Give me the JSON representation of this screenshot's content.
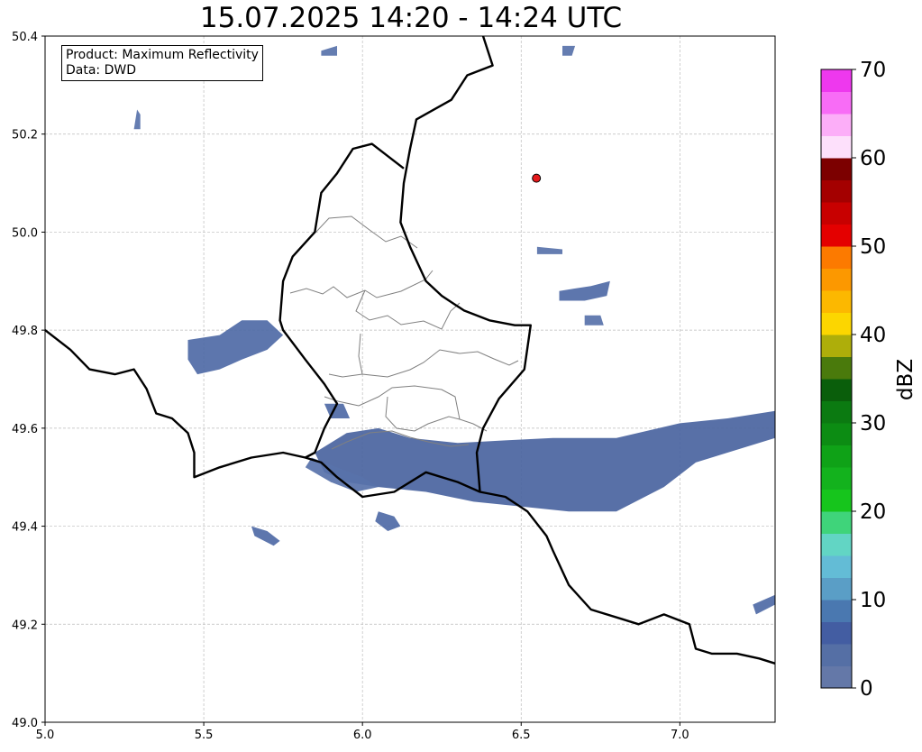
{
  "title": "15.07.2025 14:20 - 14:24 UTC",
  "info": {
    "product_line": "Product: Maximum Reflectivity",
    "data_line": "Data: DWD"
  },
  "map": {
    "lon_range": [
      5.0,
      7.3
    ],
    "lat_range": [
      49.0,
      50.4
    ],
    "x_ticks": [
      "5.0",
      "5.5",
      "6.0",
      "6.5",
      "7.0"
    ],
    "y_ticks": [
      "49.0",
      "49.2",
      "49.4",
      "49.6",
      "49.8",
      "50.0",
      "50.2",
      "50.4"
    ],
    "grid": true,
    "radar_site": {
      "lon": 6.548,
      "lat": 50.11,
      "color": "#e41a1c"
    },
    "country_border": [
      [
        5.0,
        49.8
      ],
      [
        5.08,
        49.76
      ],
      [
        5.14,
        49.72
      ],
      [
        5.22,
        49.71
      ],
      [
        5.28,
        49.72
      ],
      [
        5.32,
        49.68
      ],
      [
        5.35,
        49.63
      ],
      [
        5.4,
        49.62
      ],
      [
        5.45,
        49.59
      ],
      [
        5.47,
        49.55
      ],
      [
        5.47,
        49.5
      ],
      [
        5.55,
        49.52
      ],
      [
        5.65,
        49.54
      ],
      [
        5.75,
        49.55
      ],
      [
        5.82,
        49.54
      ],
      [
        5.87,
        49.53
      ],
      [
        5.92,
        49.5
      ],
      [
        6.0,
        49.46
      ],
      [
        6.1,
        49.47
      ],
      [
        6.2,
        49.51
      ],
      [
        6.3,
        49.49
      ],
      [
        6.37,
        49.47
      ],
      [
        6.45,
        49.46
      ],
      [
        6.52,
        49.43
      ],
      [
        6.58,
        49.38
      ],
      [
        6.6,
        49.35
      ],
      [
        6.65,
        49.28
      ],
      [
        6.72,
        49.23
      ],
      [
        6.82,
        49.21
      ],
      [
        6.87,
        49.2
      ],
      [
        6.95,
        49.22
      ],
      [
        7.03,
        49.2
      ],
      [
        7.05,
        49.15
      ],
      [
        7.1,
        49.14
      ],
      [
        7.18,
        49.14
      ],
      [
        7.25,
        49.13
      ],
      [
        7.3,
        49.12
      ]
    ],
    "west_border": [
      [
        6.38,
        50.4
      ],
      [
        6.41,
        50.34
      ],
      [
        6.33,
        50.32
      ],
      [
        6.28,
        50.27
      ],
      [
        6.17,
        50.23
      ],
      [
        6.15,
        50.17
      ],
      [
        6.13,
        50.1
      ],
      [
        6.12,
        50.02
      ],
      [
        6.15,
        49.97
      ],
      [
        6.2,
        49.9
      ],
      [
        6.25,
        49.87
      ],
      [
        6.32,
        49.84
      ],
      [
        6.4,
        49.82
      ],
      [
        6.48,
        49.81
      ],
      [
        6.53,
        49.81
      ],
      [
        6.51,
        49.72
      ],
      [
        6.43,
        49.66
      ],
      [
        6.38,
        49.6
      ],
      [
        6.36,
        49.55
      ],
      [
        6.37,
        49.47
      ]
    ],
    "lux_border": [
      [
        6.13,
        50.13
      ],
      [
        6.03,
        50.18
      ],
      [
        5.97,
        50.17
      ],
      [
        5.92,
        50.12
      ],
      [
        5.87,
        50.08
      ],
      [
        5.85,
        50.0
      ],
      [
        5.78,
        49.95
      ],
      [
        5.75,
        49.9
      ],
      [
        5.74,
        49.82
      ],
      [
        5.75,
        49.8
      ],
      [
        5.82,
        49.74
      ],
      [
        5.88,
        49.69
      ],
      [
        5.92,
        49.65
      ],
      [
        5.88,
        49.6
      ],
      [
        5.85,
        49.55
      ],
      [
        5.82,
        49.54
      ]
    ]
  },
  "colorbar": {
    "label": "dBZ",
    "ticks": [
      "0",
      "10",
      "20",
      "30",
      "40",
      "50",
      "60",
      "70"
    ],
    "range": [
      0,
      70
    ],
    "levels": [
      {
        "from": 0,
        "to": 2.5,
        "color": "#6478a8"
      },
      {
        "from": 2.5,
        "to": 5,
        "color": "#556fa5"
      },
      {
        "from": 5,
        "to": 7.5,
        "color": "#435da2"
      },
      {
        "from": 7.5,
        "to": 10,
        "color": "#4a78b0"
      },
      {
        "from": 10,
        "to": 12.5,
        "color": "#5a9ec6"
      },
      {
        "from": 12.5,
        "to": 15,
        "color": "#63bcd6"
      },
      {
        "from": 15,
        "to": 17.5,
        "color": "#62d5c4"
      },
      {
        "from": 17.5,
        "to": 20,
        "color": "#3fd47a"
      },
      {
        "from": 20,
        "to": 22.5,
        "color": "#16c51c"
      },
      {
        "from": 22.5,
        "to": 25,
        "color": "#13b21d"
      },
      {
        "from": 25,
        "to": 27.5,
        "color": "#0fa217"
      },
      {
        "from": 27.5,
        "to": 30,
        "color": "#0c8c13"
      },
      {
        "from": 30,
        "to": 32.5,
        "color": "#0b7a11"
      },
      {
        "from": 32.5,
        "to": 35,
        "color": "#0a5e0b"
      },
      {
        "from": 35,
        "to": 37.5,
        "color": "#4a7a0c"
      },
      {
        "from": 37.5,
        "to": 40,
        "color": "#aeae0a"
      },
      {
        "from": 40,
        "to": 42.5,
        "color": "#fcd600"
      },
      {
        "from": 42.5,
        "to": 45,
        "color": "#fcb800"
      },
      {
        "from": 45,
        "to": 47.5,
        "color": "#fc9800"
      },
      {
        "from": 47.5,
        "to": 50,
        "color": "#fc7a00"
      },
      {
        "from": 50,
        "to": 52.5,
        "color": "#e40000"
      },
      {
        "from": 52.5,
        "to": 55,
        "color": "#c80000"
      },
      {
        "from": 55,
        "to": 57.5,
        "color": "#a40000"
      },
      {
        "from": 57.5,
        "to": 60,
        "color": "#7c0000"
      },
      {
        "from": 60,
        "to": 62.5,
        "color": "#fde0fb"
      },
      {
        "from": 62.5,
        "to": 65,
        "color": "#fcaef8"
      },
      {
        "from": 65,
        "to": 67.5,
        "color": "#f86cf6"
      },
      {
        "from": 67.5,
        "to": 70,
        "color": "#ee38ee"
      }
    ]
  },
  "echo_areas": [
    {
      "id": "band-main",
      "color": "#4a64a0",
      "points": [
        [
          5.85,
          49.55
        ],
        [
          5.95,
          49.59
        ],
        [
          6.05,
          49.6
        ],
        [
          6.15,
          49.58
        ],
        [
          6.3,
          49.57
        ],
        [
          6.45,
          49.575
        ],
        [
          6.6,
          49.58
        ],
        [
          6.8,
          49.58
        ],
        [
          7.0,
          49.61
        ],
        [
          7.15,
          49.62
        ],
        [
          7.3,
          49.635
        ],
        [
          7.3,
          49.58
        ],
        [
          7.15,
          49.55
        ],
        [
          7.05,
          49.53
        ],
        [
          6.95,
          49.48
        ],
        [
          6.8,
          49.43
        ],
        [
          6.65,
          49.43
        ],
        [
          6.5,
          49.44
        ],
        [
          6.35,
          49.45
        ],
        [
          6.2,
          49.47
        ],
        [
          6.05,
          49.48
        ],
        [
          5.95,
          49.49
        ],
        [
          5.88,
          49.51
        ]
      ]
    },
    {
      "id": "band-west",
      "color": "#5872aa",
      "points": [
        [
          5.84,
          49.54
        ],
        [
          5.92,
          49.52
        ],
        [
          6.0,
          49.5
        ],
        [
          6.05,
          49.48
        ],
        [
          5.98,
          49.47
        ],
        [
          5.9,
          49.49
        ],
        [
          5.82,
          49.52
        ]
      ]
    },
    {
      "id": "cell-west-a",
      "color": "#4f6aa6",
      "points": [
        [
          5.45,
          49.78
        ],
        [
          5.55,
          49.79
        ],
        [
          5.62,
          49.82
        ],
        [
          5.7,
          49.82
        ],
        [
          5.75,
          49.79
        ],
        [
          5.7,
          49.76
        ],
        [
          5.62,
          49.74
        ],
        [
          5.55,
          49.72
        ],
        [
          5.48,
          49.71
        ],
        [
          5.45,
          49.74
        ]
      ]
    },
    {
      "id": "cell-ne",
      "color": "#4f6aa6",
      "points": [
        [
          6.62,
          49.88
        ],
        [
          6.72,
          49.89
        ],
        [
          6.78,
          49.9
        ],
        [
          6.77,
          49.87
        ],
        [
          6.7,
          49.86
        ],
        [
          6.62,
          49.86
        ]
      ]
    },
    {
      "id": "cell-sw",
      "color": "#4f6aa6",
      "points": [
        [
          5.65,
          49.4
        ],
        [
          5.7,
          49.39
        ],
        [
          5.74,
          49.37
        ],
        [
          5.72,
          49.36
        ],
        [
          5.66,
          49.38
        ]
      ]
    },
    {
      "id": "cell-s",
      "color": "#4f6aa6",
      "points": [
        [
          6.05,
          49.43
        ],
        [
          6.1,
          49.42
        ],
        [
          6.12,
          49.4
        ],
        [
          6.08,
          49.39
        ],
        [
          6.04,
          49.41
        ]
      ]
    },
    {
      "id": "cell-se",
      "color": "#4f6aa6",
      "points": [
        [
          7.23,
          49.24
        ],
        [
          7.3,
          49.26
        ],
        [
          7.3,
          49.24
        ],
        [
          7.24,
          49.22
        ]
      ]
    },
    {
      "id": "cell-n1",
      "color": "#5872aa",
      "points": [
        [
          6.55,
          49.97
        ],
        [
          6.63,
          49.965
        ],
        [
          6.63,
          49.955
        ],
        [
          6.55,
          49.955
        ]
      ]
    },
    {
      "id": "cell-n2",
      "color": "#5872aa",
      "points": [
        [
          5.29,
          50.25
        ],
        [
          5.3,
          50.24
        ],
        [
          5.3,
          50.21
        ],
        [
          5.28,
          50.21
        ]
      ]
    },
    {
      "id": "cell-n3",
      "color": "#5872aa",
      "points": [
        [
          5.87,
          50.37
        ],
        [
          5.92,
          50.38
        ],
        [
          5.92,
          50.36
        ],
        [
          5.87,
          50.36
        ]
      ]
    },
    {
      "id": "cell-n4",
      "color": "#5872aa",
      "points": [
        [
          6.63,
          50.38
        ],
        [
          6.67,
          50.38
        ],
        [
          6.66,
          50.36
        ],
        [
          6.63,
          50.36
        ]
      ]
    },
    {
      "id": "cell-c1",
      "color": "#4f6aa6",
      "points": [
        [
          5.88,
          49.65
        ],
        [
          5.94,
          49.65
        ],
        [
          5.96,
          49.62
        ],
        [
          5.9,
          49.62
        ]
      ]
    },
    {
      "id": "cell-e1",
      "color": "#5872aa",
      "points": [
        [
          6.7,
          49.83
        ],
        [
          6.75,
          49.83
        ],
        [
          6.76,
          49.81
        ],
        [
          6.7,
          49.81
        ]
      ]
    }
  ]
}
